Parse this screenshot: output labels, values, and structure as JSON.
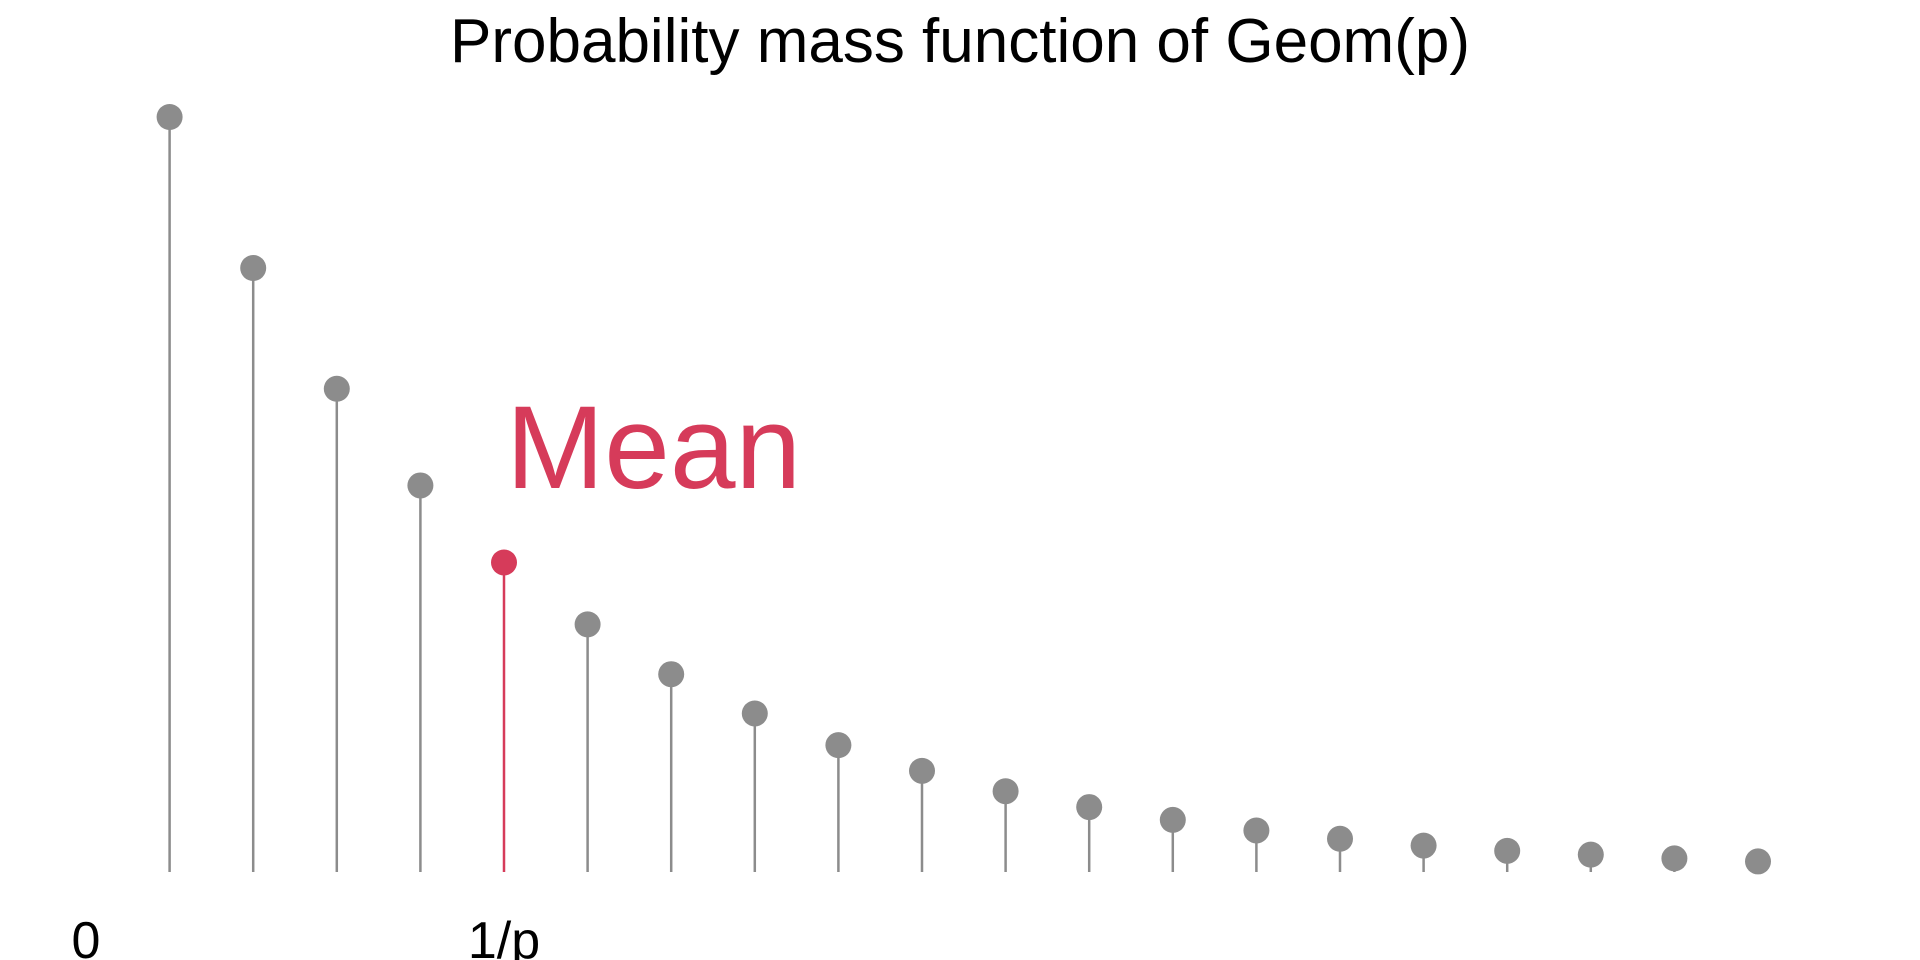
{
  "chart_data": {
    "type": "scatter",
    "subtype": "stem",
    "title": "Probability mass function of Geom(p)",
    "xlabel": "",
    "ylabel": "",
    "x": [
      1,
      2,
      3,
      4,
      5,
      6,
      7,
      8,
      9,
      10,
      11,
      12,
      13,
      14,
      15,
      16,
      17,
      18,
      19,
      20
    ],
    "values": [
      1.0,
      0.8,
      0.64,
      0.512,
      0.41,
      0.328,
      0.262,
      0.21,
      0.168,
      0.134,
      0.107,
      0.086,
      0.069,
      0.055,
      0.044,
      0.035,
      0.028,
      0.023,
      0.018,
      0.014
    ],
    "highlight_index": 4,
    "x_ticks": [
      {
        "x": 0,
        "label": "0"
      },
      {
        "x": 5,
        "label": "1/p"
      }
    ],
    "annotation": {
      "text": "Mean",
      "at_index": 4
    },
    "ylim": [
      0,
      1
    ],
    "grid": false,
    "legend": "none",
    "colors": {
      "stem": "#8c8c8c",
      "highlight": "#d63b5a",
      "text": "#000000"
    }
  }
}
